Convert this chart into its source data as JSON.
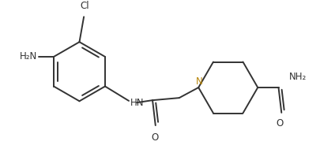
{
  "background_color": "#ffffff",
  "line_color": "#333333",
  "n_color": "#b8860b",
  "text_color": "#333333",
  "line_width": 1.4,
  "figsize": [
    4.05,
    1.89
  ],
  "dpi": 100,
  "xlim": [
    0,
    10
  ],
  "ylim": [
    0,
    4.67
  ]
}
